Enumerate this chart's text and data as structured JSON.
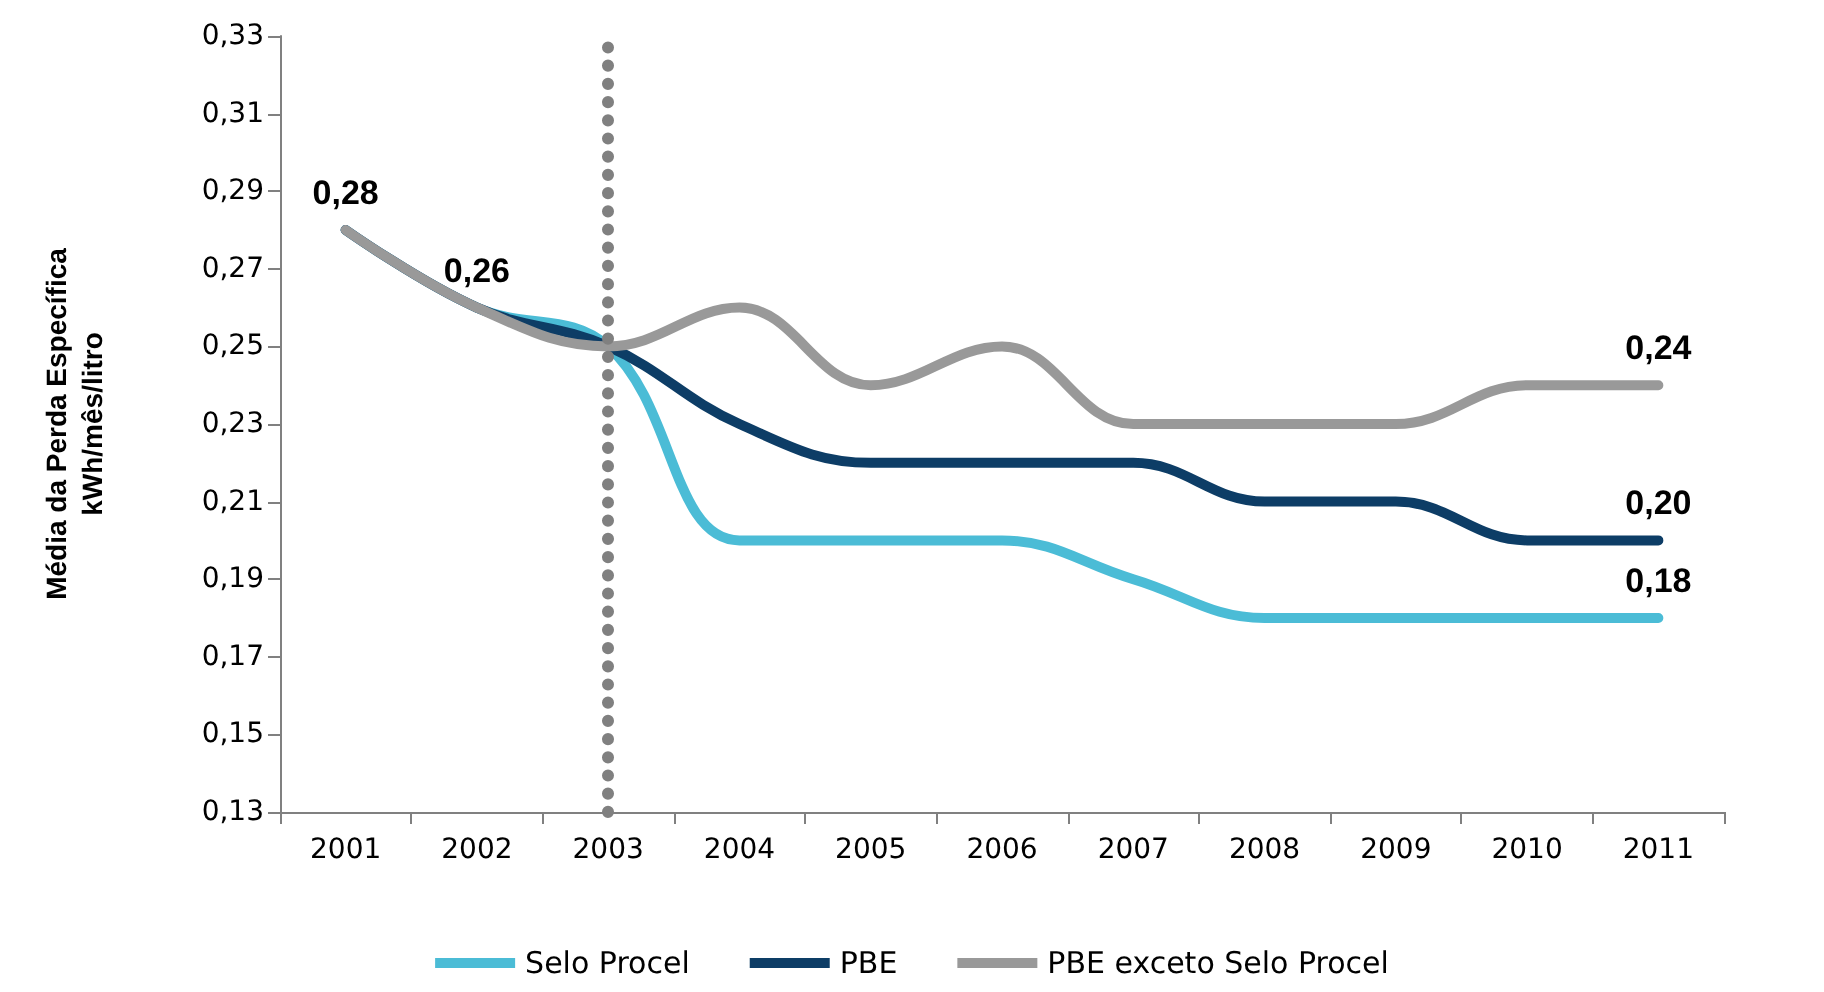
{
  "chart_data": {
    "type": "line",
    "ylabel": "Média da Perda Específica\nkWh/mês/litro",
    "categories": [
      "2001",
      "2002",
      "2003",
      "2004",
      "2005",
      "2006",
      "2007",
      "2008",
      "2009",
      "2010",
      "2011"
    ],
    "series": [
      {
        "name": "Selo Procel",
        "color": "#4bbcd6",
        "values": [
          0.28,
          0.26,
          0.25,
          0.2,
          0.2,
          0.2,
          0.19,
          0.18,
          0.18,
          0.18,
          0.18
        ],
        "value_labels": [
          null,
          null,
          null,
          null,
          null,
          null,
          null,
          null,
          null,
          null,
          "0,18"
        ]
      },
      {
        "name": "PBE",
        "color": "#0d3d66",
        "values": [
          0.28,
          0.26,
          0.25,
          0.23,
          0.22,
          0.22,
          0.22,
          0.21,
          0.21,
          0.2,
          0.2
        ],
        "value_labels": [
          null,
          null,
          null,
          null,
          null,
          null,
          null,
          null,
          null,
          null,
          "0,20"
        ]
      },
      {
        "name": "PBE exceto Selo Procel",
        "color": "#999999",
        "values": [
          0.28,
          0.26,
          0.25,
          0.26,
          0.24,
          0.25,
          0.23,
          0.23,
          0.23,
          0.24,
          0.24
        ],
        "value_labels": [
          "0,28",
          "0,26",
          null,
          null,
          null,
          null,
          null,
          null,
          null,
          null,
          "0,24"
        ]
      }
    ],
    "ylim": [
      0.13,
      0.33
    ],
    "yticks": [
      {
        "value": 0.13,
        "label": "0,13"
      },
      {
        "value": 0.15,
        "label": "0,15"
      },
      {
        "value": 0.17,
        "label": "0,17"
      },
      {
        "value": 0.19,
        "label": "0,19"
      },
      {
        "value": 0.21,
        "label": "0,21"
      },
      {
        "value": 0.23,
        "label": "0,23"
      },
      {
        "value": 0.25,
        "label": "0,25"
      },
      {
        "value": 0.27,
        "label": "0,27"
      },
      {
        "value": 0.29,
        "label": "0,29"
      },
      {
        "value": 0.31,
        "label": "0,31"
      },
      {
        "value": 0.33,
        "label": "0,33"
      }
    ],
    "ref_lines": [
      {
        "axis": "x",
        "value": "2003",
        "color": "#808080",
        "line_style": "dotted"
      }
    ],
    "grid": false,
    "legend": "bottom",
    "marker": "none",
    "line_style": "solid"
  }
}
